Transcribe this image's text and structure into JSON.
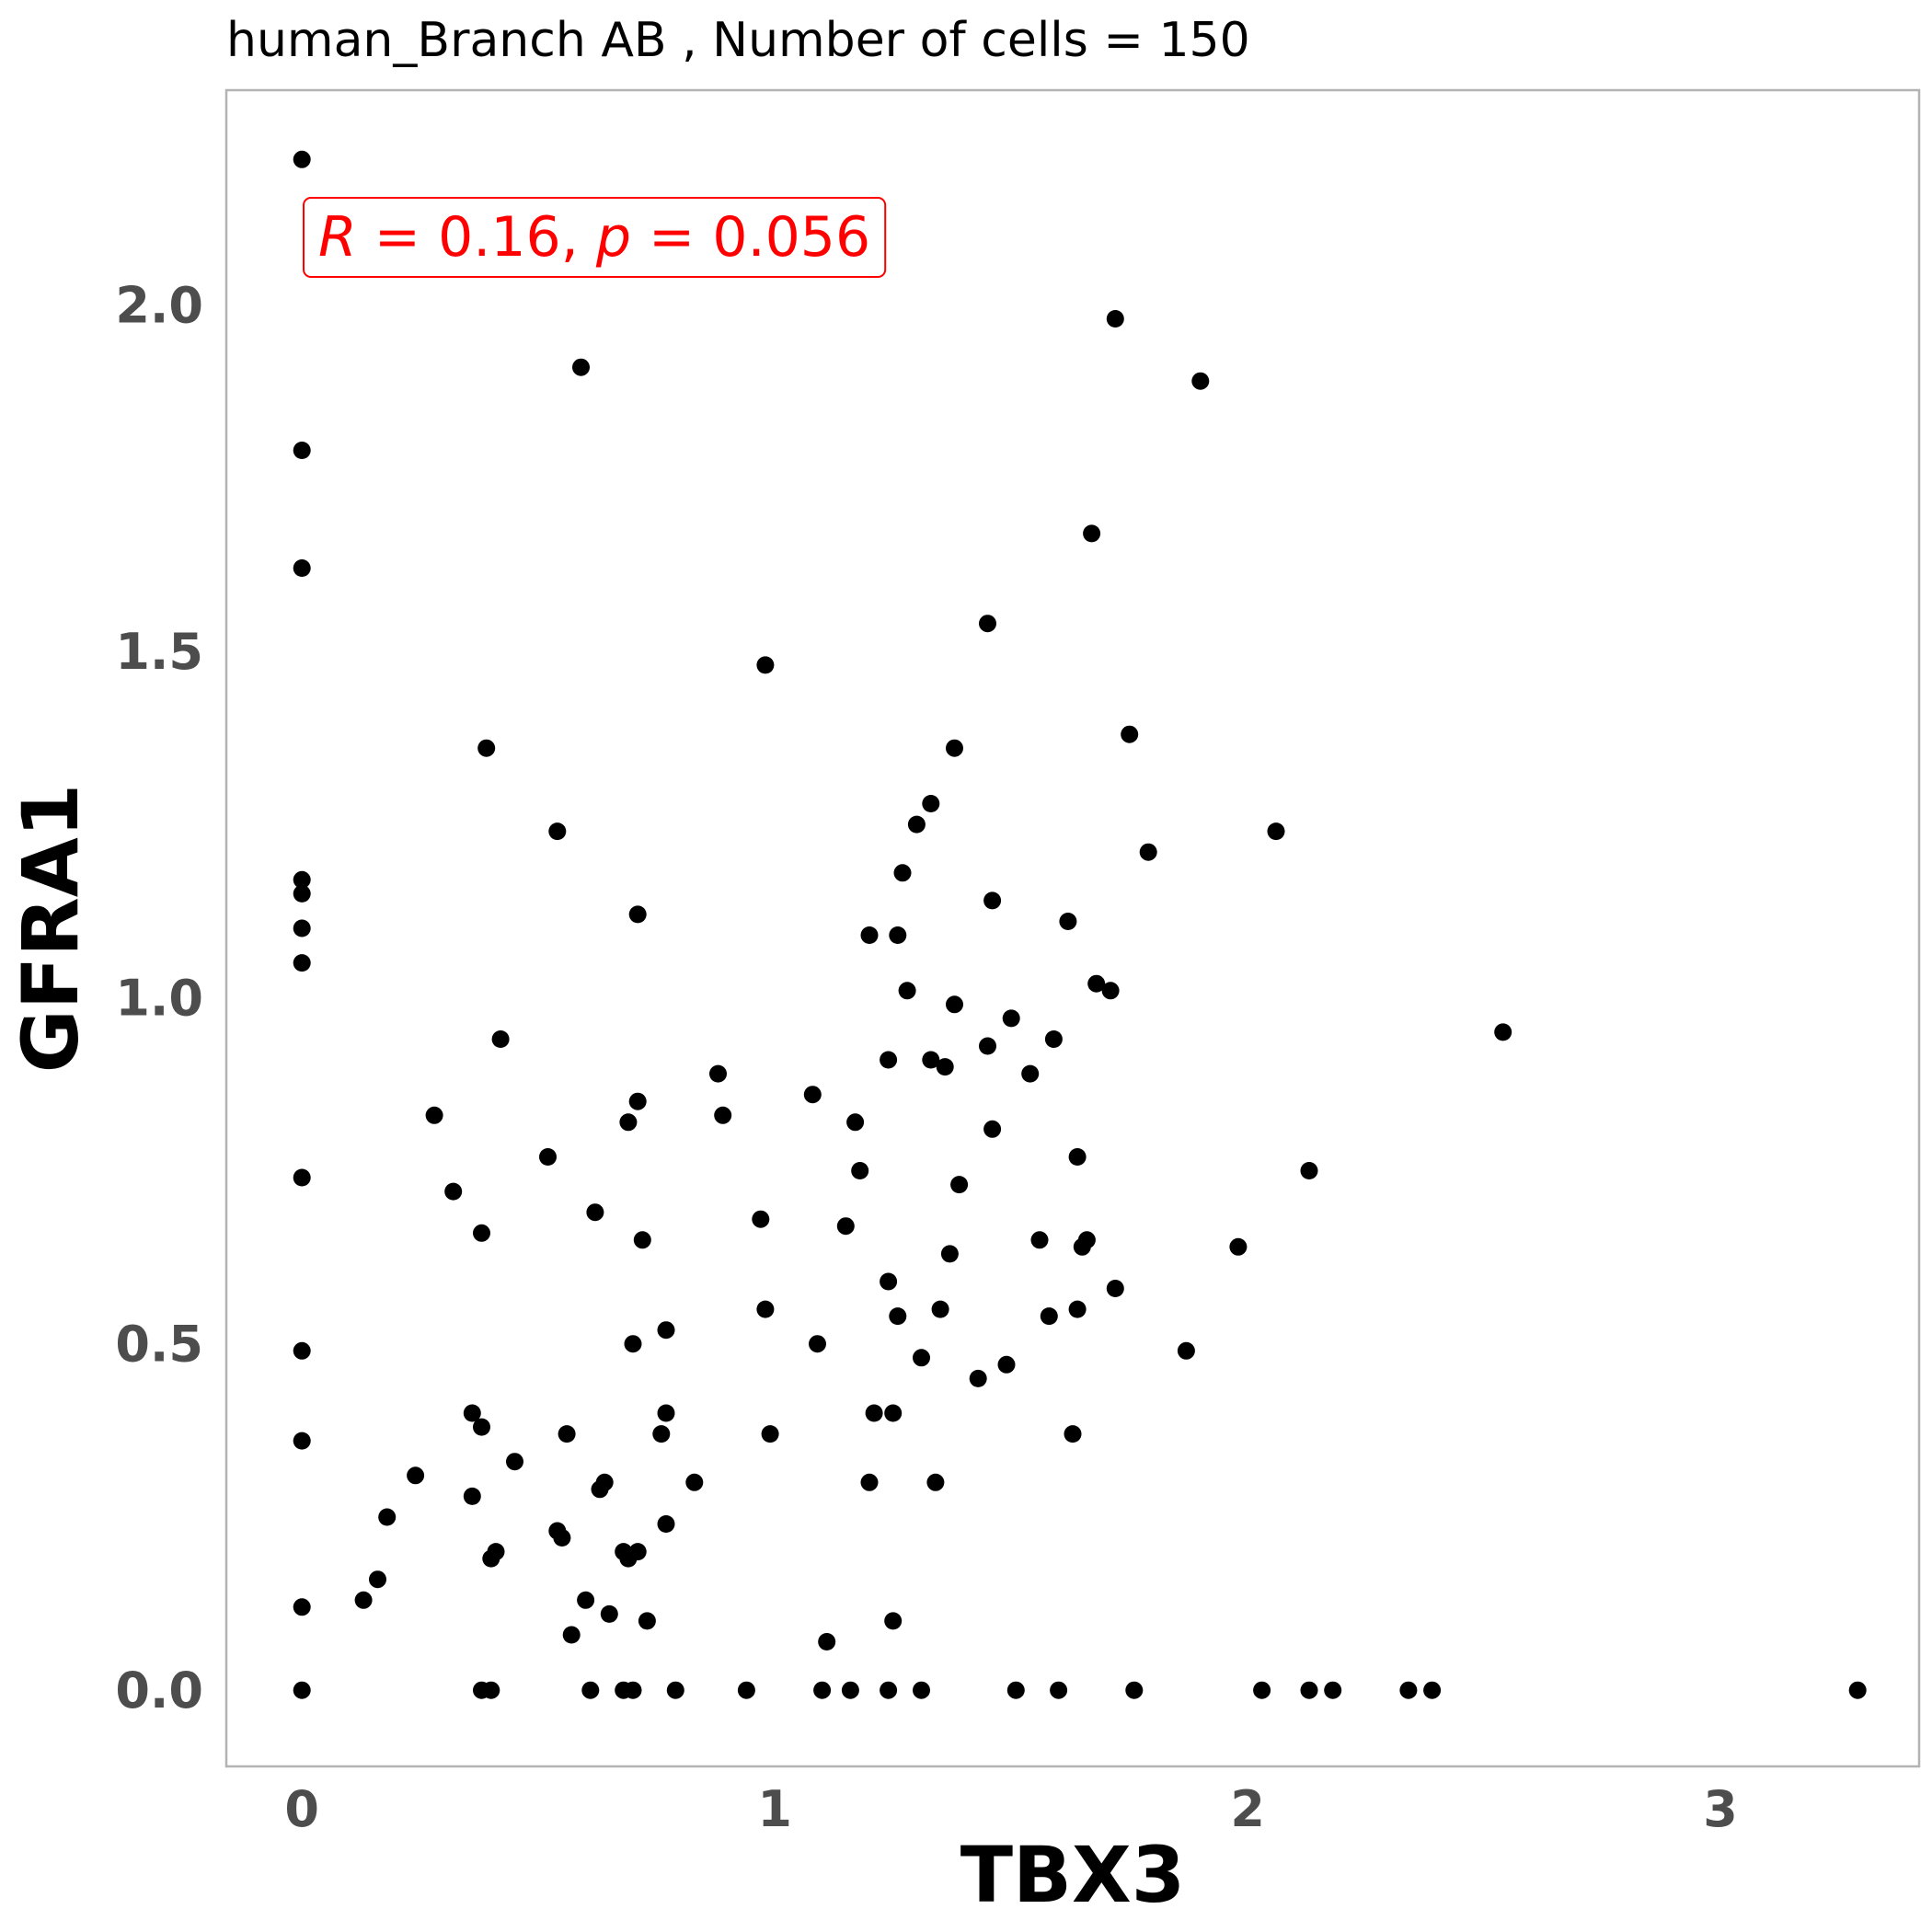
{
  "chart_data": {
    "type": "scatter",
    "title": "human_Branch AB , Number of cells =  150",
    "xlabel": "TBX3",
    "ylabel": "GFRA1",
    "xlim": [
      -0.16,
      3.42
    ],
    "ylim": [
      -0.11,
      2.31
    ],
    "xticks": [
      0,
      1,
      2,
      3
    ],
    "xtick_labels": [
      "0",
      "1",
      "2",
      "3"
    ],
    "yticks": [
      0.0,
      0.5,
      1.0,
      1.5,
      2.0
    ],
    "ytick_labels": [
      "0.0",
      "0.5",
      "1.0",
      "1.5",
      "2.0"
    ],
    "grid": false,
    "point_color": "#000000",
    "annotation": {
      "r_label": "R",
      "r_value": "0.16",
      "p_label": "p",
      "p_value": "0.056",
      "color": "#ff0000"
    },
    "points": [
      [
        0,
        2.21
      ],
      [
        0,
        1.79
      ],
      [
        0,
        1.62
      ],
      [
        0,
        1.17
      ],
      [
        0,
        1.15
      ],
      [
        0,
        1.1
      ],
      [
        0,
        1.05
      ],
      [
        0,
        0.74
      ],
      [
        0,
        0.49
      ],
      [
        0,
        0.36
      ],
      [
        0,
        0.12
      ],
      [
        0,
        0.0
      ],
      [
        0.13,
        0.13
      ],
      [
        0.16,
        0.16
      ],
      [
        0.18,
        0.25
      ],
      [
        0.24,
        0.31
      ],
      [
        0.28,
        0.83
      ],
      [
        0.32,
        0.72
      ],
      [
        0.36,
        0.4
      ],
      [
        0.36,
        0.28
      ],
      [
        0.38,
        0.38
      ],
      [
        0.38,
        0.66
      ],
      [
        0.38,
        0.0
      ],
      [
        0.39,
        1.36
      ],
      [
        0.4,
        0.0
      ],
      [
        0.4,
        0.19
      ],
      [
        0.41,
        0.2
      ],
      [
        0.42,
        0.94
      ],
      [
        0.45,
        0.33
      ],
      [
        0.52,
        0.77
      ],
      [
        0.54,
        1.24
      ],
      [
        0.54,
        0.23
      ],
      [
        0.55,
        0.22
      ],
      [
        0.56,
        0.37
      ],
      [
        0.57,
        0.08
      ],
      [
        0.59,
        1.91
      ],
      [
        0.6,
        0.13
      ],
      [
        0.61,
        0.0
      ],
      [
        0.62,
        0.69
      ],
      [
        0.63,
        0.29
      ],
      [
        0.64,
        0.3
      ],
      [
        0.65,
        0.11
      ],
      [
        0.68,
        0.2
      ],
      [
        0.68,
        0.0
      ],
      [
        0.69,
        0.82
      ],
      [
        0.69,
        0.19
      ],
      [
        0.7,
        0.0
      ],
      [
        0.7,
        0.5
      ],
      [
        0.71,
        0.85
      ],
      [
        0.71,
        0.2
      ],
      [
        0.71,
        1.12
      ],
      [
        0.72,
        0.65
      ],
      [
        0.73,
        0.1
      ],
      [
        0.76,
        0.37
      ],
      [
        0.77,
        0.52
      ],
      [
        0.77,
        0.4
      ],
      [
        0.77,
        0.24
      ],
      [
        0.79,
        0.0
      ],
      [
        0.83,
        0.3
      ],
      [
        0.88,
        0.89
      ],
      [
        0.89,
        0.83
      ],
      [
        0.94,
        0.0
      ],
      [
        0.97,
        0.68
      ],
      [
        0.98,
        1.48
      ],
      [
        0.98,
        0.55
      ],
      [
        0.99,
        0.37
      ],
      [
        1.08,
        0.86
      ],
      [
        1.09,
        0.5
      ],
      [
        1.1,
        0.0
      ],
      [
        1.11,
        0.07
      ],
      [
        1.15,
        0.67
      ],
      [
        1.16,
        0.0
      ],
      [
        1.17,
        0.82
      ],
      [
        1.18,
        0.75
      ],
      [
        1.2,
        1.09
      ],
      [
        1.2,
        0.3
      ],
      [
        1.21,
        0.4
      ],
      [
        1.24,
        0.91
      ],
      [
        1.24,
        0.0
      ],
      [
        1.24,
        0.59
      ],
      [
        1.25,
        0.4
      ],
      [
        1.25,
        0.1
      ],
      [
        1.26,
        1.09
      ],
      [
        1.26,
        0.54
      ],
      [
        1.27,
        1.18
      ],
      [
        1.28,
        1.01
      ],
      [
        1.3,
        1.25
      ],
      [
        1.31,
        0.48
      ],
      [
        1.31,
        0.0
      ],
      [
        1.33,
        0.91
      ],
      [
        1.33,
        1.28
      ],
      [
        1.34,
        0.3
      ],
      [
        1.35,
        0.55
      ],
      [
        1.36,
        0.9
      ],
      [
        1.37,
        0.63
      ],
      [
        1.38,
        1.36
      ],
      [
        1.38,
        0.99
      ],
      [
        1.39,
        0.73
      ],
      [
        1.43,
        0.45
      ],
      [
        1.45,
        1.54
      ],
      [
        1.45,
        0.93
      ],
      [
        1.46,
        0.81
      ],
      [
        1.46,
        1.14
      ],
      [
        1.49,
        0.47
      ],
      [
        1.5,
        0.97
      ],
      [
        1.51,
        0.0
      ],
      [
        1.54,
        0.89
      ],
      [
        1.56,
        0.65
      ],
      [
        1.58,
        0.54
      ],
      [
        1.59,
        0.94
      ],
      [
        1.6,
        0.0
      ],
      [
        1.62,
        1.11
      ],
      [
        1.63,
        0.37
      ],
      [
        1.64,
        0.77
      ],
      [
        1.64,
        0.55
      ],
      [
        1.65,
        0.64
      ],
      [
        1.66,
        0.65
      ],
      [
        1.67,
        1.67
      ],
      [
        1.68,
        1.02
      ],
      [
        1.71,
        1.01
      ],
      [
        1.72,
        1.98
      ],
      [
        1.72,
        0.58
      ],
      [
        1.75,
        1.38
      ],
      [
        1.76,
        0.0
      ],
      [
        1.79,
        1.21
      ],
      [
        1.87,
        0.49
      ],
      [
        1.9,
        1.89
      ],
      [
        1.98,
        0.64
      ],
      [
        2.03,
        0.0
      ],
      [
        2.06,
        1.24
      ],
      [
        2.13,
        0.75
      ],
      [
        2.13,
        0.0
      ],
      [
        2.18,
        0.0
      ],
      [
        2.34,
        0.0
      ],
      [
        2.39,
        0.0
      ],
      [
        2.54,
        0.95
      ],
      [
        3.29,
        0.0
      ]
    ]
  }
}
